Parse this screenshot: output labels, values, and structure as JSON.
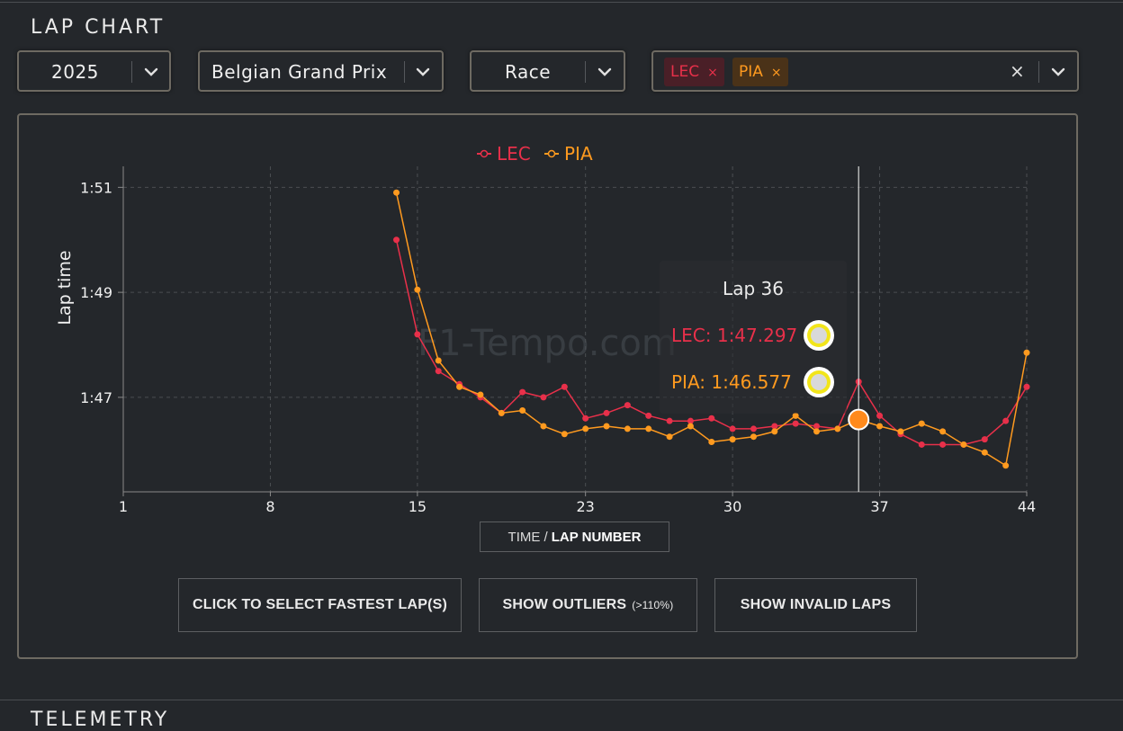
{
  "section_title": "LAP CHART",
  "next_section_title": "TELEMETRY",
  "filters": {
    "year": "2025",
    "event": "Belgian Grand Prix",
    "session": "Race",
    "drivers": [
      {
        "code": "LEC",
        "color": "#e8304a",
        "bg": "#4a1f27"
      },
      {
        "code": "PIA",
        "color": "#ff9a1f",
        "bg": "#4a3218"
      }
    ],
    "clear_glyph": "×",
    "remove_glyph": "×"
  },
  "chart_data": {
    "type": "line",
    "title": "",
    "ylabel": "Lap time",
    "xlabel": "TIME / LAP NUMBER",
    "x_ticks": [
      1,
      8,
      15,
      23,
      30,
      37,
      44
    ],
    "xlim": [
      1,
      44
    ],
    "y_ticks": [
      {
        "value": 107,
        "label": "1:47"
      },
      {
        "value": 109,
        "label": "1:49"
      },
      {
        "value": 111,
        "label": "1:51"
      }
    ],
    "ylim": [
      105.2,
      111.4
    ],
    "grid": true,
    "legend": "top-center",
    "watermark": "F1-Tempo.com",
    "x": [
      14,
      15,
      16,
      17,
      18,
      19,
      20,
      21,
      22,
      23,
      24,
      25,
      26,
      27,
      28,
      29,
      30,
      31,
      32,
      33,
      34,
      35,
      36,
      37,
      38,
      39,
      40,
      41,
      42,
      43,
      44
    ],
    "series": [
      {
        "name": "LEC",
        "color": "#e8304a",
        "values": [
          110.0,
          108.2,
          107.5,
          107.25,
          107.0,
          106.7,
          107.1,
          107.0,
          107.2,
          106.6,
          106.7,
          106.85,
          106.65,
          106.55,
          106.55,
          106.6,
          106.4,
          106.4,
          106.45,
          106.5,
          106.45,
          106.4,
          107.297,
          106.65,
          106.3,
          106.1,
          106.1,
          106.1,
          106.2,
          106.55,
          107.2
        ]
      },
      {
        "name": "PIA",
        "color": "#ff9a1f",
        "values": [
          110.9,
          109.05,
          107.7,
          107.2,
          107.05,
          106.7,
          106.75,
          106.45,
          106.3,
          106.4,
          106.45,
          106.4,
          106.4,
          106.25,
          106.45,
          106.15,
          106.2,
          106.25,
          106.35,
          106.65,
          106.35,
          106.4,
          106.577,
          106.45,
          106.35,
          106.5,
          106.35,
          106.1,
          105.95,
          105.7,
          107.85
        ]
      }
    ],
    "tooltip": {
      "lap": 36,
      "title": "Lap 36",
      "rows": [
        {
          "driver": "LEC",
          "text": "LEC: 1:47.297",
          "color": "#e8304a"
        },
        {
          "driver": "PIA",
          "text": "PIA: 1:46.577",
          "color": "#ff9a1f"
        }
      ]
    }
  },
  "buttons": {
    "fastest": "CLICK TO SELECT FASTEST LAP(S)",
    "outliers": "SHOW OUTLIERS",
    "outliers_note": "(>110%)",
    "invalid": "SHOW INVALID LAPS"
  },
  "axis_toggle": {
    "time": "TIME /",
    "lap": "LAP NUMBER"
  }
}
